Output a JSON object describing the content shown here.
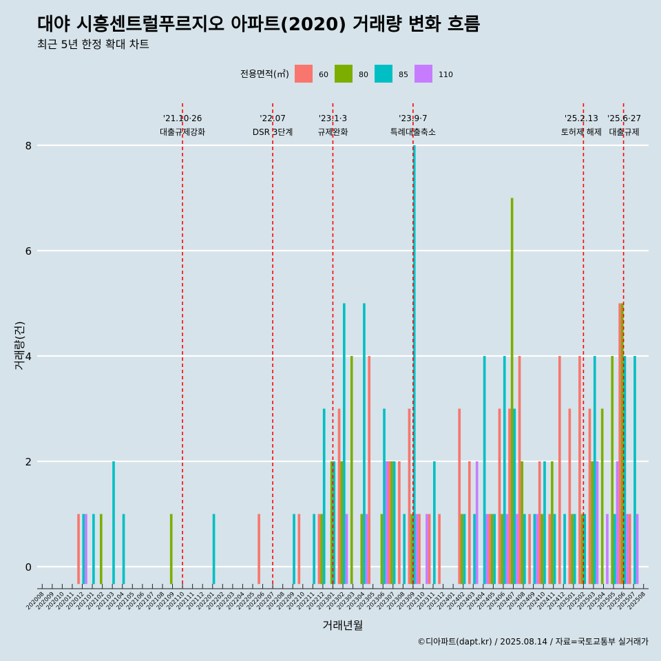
{
  "chart_data": {
    "type": "bar",
    "title": "대야 시흥센트럴푸르지오 아파트(2020) 거래량 변화 흐름",
    "subtitle": "최근 5년 한정 확대 차트",
    "xlabel": "거래년월",
    "ylabel": "거래량(건)",
    "legend_title": "전용면적(㎡)",
    "legend_position": "top",
    "ylim": [
      0,
      8.5
    ],
    "yticks": [
      0,
      2,
      4,
      6,
      8
    ],
    "grid": "horizontal",
    "categories": [
      "202008",
      "202009",
      "202010",
      "202011",
      "202012",
      "202101",
      "202102",
      "202103",
      "202104",
      "202105",
      "202106",
      "202107",
      "202108",
      "202109",
      "202110",
      "202111",
      "202112",
      "202201",
      "202202",
      "202203",
      "202204",
      "202205",
      "202206",
      "202207",
      "202208",
      "202209",
      "202210",
      "202211",
      "202212",
      "202301",
      "202302",
      "202303",
      "202304",
      "202305",
      "202306",
      "202307",
      "202308",
      "202309",
      "202310",
      "202311",
      "202312",
      "202401",
      "202402",
      "202403",
      "202404",
      "202405",
      "202406",
      "202407",
      "202408",
      "202409",
      "202410",
      "202411",
      "202412",
      "202501",
      "202502",
      "202503",
      "202504",
      "202505",
      "202506",
      "202507",
      "202508"
    ],
    "series": [
      {
        "name": "60",
        "color": "#f8766d",
        "values": [
          0,
          0,
          0,
          0,
          1,
          0,
          0,
          0,
          0,
          0,
          0,
          0,
          0,
          0,
          0,
          0,
          0,
          0,
          0,
          0,
          0,
          0,
          1,
          0,
          0,
          0,
          1,
          0,
          1,
          0,
          3,
          0,
          0,
          4,
          0,
          2,
          2,
          3,
          1,
          1,
          1,
          0,
          3,
          2,
          0,
          1,
          3,
          3,
          4,
          1,
          2,
          1,
          4,
          3,
          4,
          3,
          0,
          0,
          5,
          1,
          0
        ]
      },
      {
        "name": "80",
        "color": "#7cae00",
        "values": [
          0,
          0,
          0,
          0,
          0,
          0,
          1,
          0,
          0,
          0,
          0,
          0,
          0,
          1,
          0,
          0,
          0,
          0,
          0,
          0,
          0,
          0,
          0,
          0,
          0,
          0,
          0,
          0,
          1,
          2,
          2,
          4,
          1,
          0,
          1,
          2,
          0,
          1,
          0,
          0,
          0,
          0,
          1,
          0,
          0,
          1,
          1,
          7,
          2,
          0,
          1,
          2,
          0,
          1,
          1,
          2,
          3,
          4,
          5,
          0,
          0
        ]
      },
      {
        "name": "85",
        "color": "#00bfc4",
        "values": [
          0,
          0,
          0,
          0,
          1,
          1,
          0,
          2,
          1,
          0,
          0,
          0,
          0,
          0,
          0,
          0,
          0,
          1,
          0,
          0,
          0,
          0,
          0,
          0,
          0,
          1,
          0,
          1,
          3,
          2,
          5,
          0,
          5,
          0,
          3,
          2,
          1,
          8,
          0,
          2,
          0,
          0,
          1,
          1,
          4,
          1,
          4,
          3,
          1,
          1,
          2,
          1,
          1,
          1,
          1,
          4,
          0,
          1,
          4,
          4,
          0
        ]
      },
      {
        "name": "110",
        "color": "#c77cff",
        "values": [
          0,
          0,
          0,
          0,
          1,
          0,
          0,
          0,
          0,
          0,
          0,
          0,
          0,
          0,
          0,
          0,
          0,
          0,
          0,
          0,
          0,
          0,
          0,
          0,
          0,
          0,
          0,
          0,
          0,
          0,
          1,
          0,
          1,
          0,
          2,
          0,
          0,
          1,
          1,
          0,
          0,
          0,
          0,
          2,
          1,
          0,
          1,
          1,
          0,
          1,
          0,
          0,
          0,
          0,
          0,
          2,
          1,
          2,
          1,
          1,
          0
        ]
      }
    ],
    "events": [
      {
        "date": "202110",
        "line1": "'21.10·26",
        "line2": "대출규제강화"
      },
      {
        "date": "202207",
        "line1": "'22.07",
        "line2": "DSR 3단계"
      },
      {
        "date": "202301",
        "line1": "'23.1·3",
        "line2": "규제완화"
      },
      {
        "date": "202309",
        "line1": "'23.9·7",
        "line2": "특례대출축소"
      },
      {
        "date": "202502",
        "line1": "'25.2.13",
        "line2": "토허제 해제"
      },
      {
        "date": "202506",
        "line1": "'25.6·27",
        "line2": "대출규제"
      }
    ],
    "event_line_color": "#ff0000"
  },
  "caption": "©디아파트(dapt.kr) / 2025.08.14 / 자료=국토교통부 실거래가"
}
